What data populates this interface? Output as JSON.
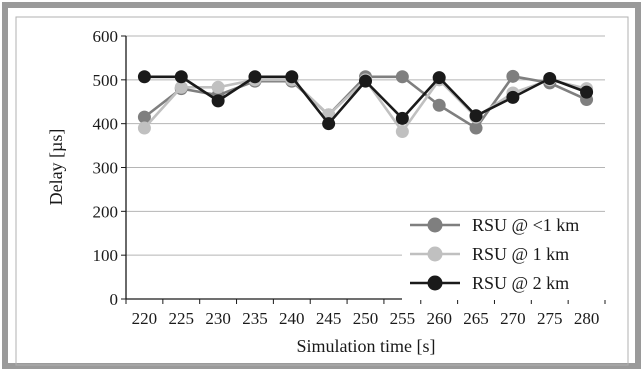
{
  "chart_data": {
    "type": "line",
    "xlabel": "Simulation time [s]",
    "ylabel": "Delay [µs]",
    "x": [
      220,
      225,
      230,
      235,
      240,
      245,
      250,
      255,
      260,
      265,
      270,
      275,
      280
    ],
    "xlim": [
      220,
      280
    ],
    "ylim": [
      0,
      600
    ],
    "yticks": [
      0,
      100,
      200,
      300,
      400,
      500,
      600
    ],
    "grid": "horizontal",
    "legend_position": "bottom-right",
    "series": [
      {
        "name": "RSU @ <1 km",
        "color": "#7f7f7f",
        "values": [
          415,
          480,
          465,
          497,
          497,
          420,
          507,
          507,
          442,
          390,
          508,
          493,
          455
        ]
      },
      {
        "name": "RSU @ 1 km",
        "color": "#c0c0c0",
        "values": [
          390,
          483,
          483,
          500,
          500,
          420,
          500,
          382,
          500,
          415,
          470,
          500,
          480
        ]
      },
      {
        "name": "RSU @ 2 km",
        "color": "#1a1a1a",
        "values": [
          507,
          507,
          452,
          507,
          507,
          400,
          497,
          412,
          505,
          418,
          460,
          503,
          472
        ]
      }
    ]
  }
}
